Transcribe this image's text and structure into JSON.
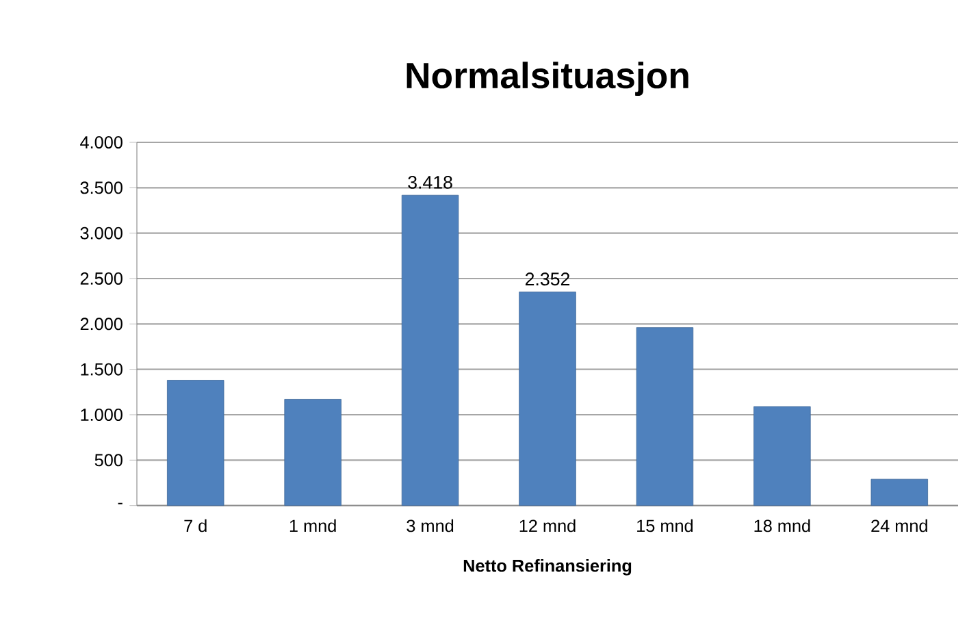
{
  "chart_data": {
    "type": "bar",
    "title": "Normalsituasjon",
    "xlabel": "Netto Refinansiering",
    "categories": [
      "7 d",
      "1 mnd",
      "3 mnd",
      "12 mnd",
      "15 mnd",
      "18 mnd",
      "24 mnd"
    ],
    "values": [
      1380,
      1170,
      3418,
      2352,
      1960,
      1090,
      290
    ],
    "value_labels": [
      null,
      null,
      "3.418",
      "2.352",
      null,
      null,
      null
    ],
    "color": "#4f81bd",
    "ylim": [
      0,
      4000
    ],
    "yticks": [
      {
        "value": 0,
        "label": "-"
      },
      {
        "value": 500,
        "label": "500"
      },
      {
        "value": 1000,
        "label": "1.000"
      },
      {
        "value": 1500,
        "label": "1.500"
      },
      {
        "value": 2000,
        "label": "2.000"
      },
      {
        "value": 2500,
        "label": "2.500"
      },
      {
        "value": 3000,
        "label": "3.000"
      },
      {
        "value": 3500,
        "label": "3.500"
      },
      {
        "value": 4000,
        "label": "4.000"
      }
    ],
    "grid": "y"
  }
}
